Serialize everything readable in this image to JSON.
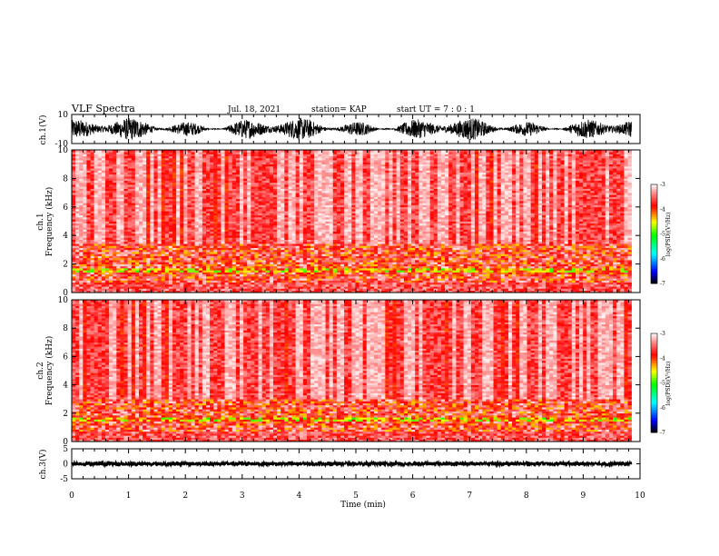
{
  "header": {
    "title": "VLF Spectra",
    "date": "Jul. 18, 2021",
    "station": "station= KAP",
    "start_ut": "start UT =  7 : 0  : 1"
  },
  "chart_data": [
    {
      "type": "line",
      "panel": "ch1-waveform",
      "ylabel": "ch.1(V)",
      "ylim": [
        -10,
        10
      ],
      "yticks": [
        "10",
        "-10"
      ],
      "xlim": [
        0,
        10
      ],
      "description_values": {
        "mean": 0,
        "typical_amplitude": 8
      },
      "color": "#000000"
    },
    {
      "type": "heatmap",
      "panel": "ch1-spectrogram",
      "ylabel": "ch.1\nFrequency  (kHz)",
      "ylim": [
        0,
        10
      ],
      "yticks": [
        "0",
        "2",
        "4",
        "6",
        "8",
        "10"
      ],
      "xlim": [
        0,
        9.85
      ],
      "dominant_level": -3.3,
      "low_band_khz": [
        0,
        3.3
      ],
      "colorbar": {
        "label": "log(PSD)(V²/Hz)",
        "range": [
          -7,
          -3
        ],
        "ticks": [
          "-3",
          "-4",
          "-5",
          "-6",
          "-7"
        ],
        "colors": [
          "#ffffff",
          "#ff0000",
          "#ffff00",
          "#00ff00",
          "#00ffff",
          "#0000ff",
          "#000000"
        ]
      }
    },
    {
      "type": "heatmap",
      "panel": "ch2-spectrogram",
      "ylabel": "ch.2\nFrequency  (kHz)",
      "ylim": [
        0,
        10
      ],
      "yticks": [
        "0",
        "2",
        "4",
        "6",
        "8",
        "10"
      ],
      "xlim": [
        0,
        9.85
      ],
      "dominant_level": -3.3,
      "low_band_khz": [
        0,
        3.0
      ],
      "colorbar": {
        "label": "log(PSD)(V²/Hz)",
        "range": [
          -7,
          -3
        ],
        "ticks": [
          "-3",
          "-4",
          "-5",
          "-6",
          "-7"
        ],
        "colors": [
          "#ffffff",
          "#ff0000",
          "#ffff00",
          "#00ff00",
          "#00ffff",
          "#0000ff",
          "#000000"
        ]
      }
    },
    {
      "type": "line",
      "panel": "ch3-waveform",
      "ylabel": "ch.3(V)",
      "ylim": [
        -5,
        5
      ],
      "yticks": [
        "5",
        "0",
        "-5"
      ],
      "xlim": [
        0,
        10
      ],
      "description_values": {
        "mean": 0,
        "typical_amplitude": 0.6
      },
      "color": "#000000"
    }
  ],
  "xaxis": {
    "label": "Time  (min)",
    "ticks": [
      "0",
      "1",
      "2",
      "3",
      "4",
      "5",
      "6",
      "7",
      "8",
      "9",
      "10"
    ]
  }
}
